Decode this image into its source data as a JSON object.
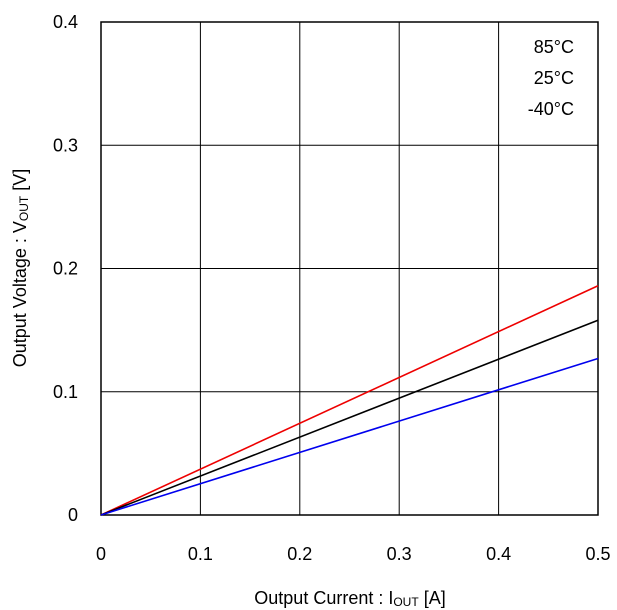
{
  "chart_data": {
    "type": "line",
    "xlabel": "Output Current : I",
    "xlabel_sub": "OUT",
    "xlabel_unit": " [A]",
    "ylabel": "Output Voltage : V",
    "ylabel_sub": "OUT",
    "ylabel_unit": " [V]",
    "xlim": [
      0,
      0.5
    ],
    "ylim": [
      0,
      0.4
    ],
    "x_ticks": [
      0,
      0.1,
      0.2,
      0.3,
      0.4,
      0.5
    ],
    "x_tick_labels": [
      "0",
      "0.1",
      "0.2",
      "0.3",
      "0.4",
      "0.5"
    ],
    "y_ticks": [
      0,
      0.1,
      0.2,
      0.3,
      0.4
    ],
    "y_tick_labels": [
      "0",
      "0.1",
      "0.2",
      "0.3",
      "0.4"
    ],
    "grid": true,
    "legend_position": "top-right",
    "series": [
      {
        "name": "85°C",
        "color": "#ee0000",
        "x": [
          0,
          0.5
        ],
        "y": [
          0,
          0.186
        ]
      },
      {
        "name": "25°C",
        "color": "#000000",
        "x": [
          0,
          0.5
        ],
        "y": [
          0,
          0.158
        ]
      },
      {
        "name": "-40°C",
        "color": "#0000ee",
        "x": [
          0,
          0.5
        ],
        "y": [
          0,
          0.127
        ]
      }
    ]
  }
}
